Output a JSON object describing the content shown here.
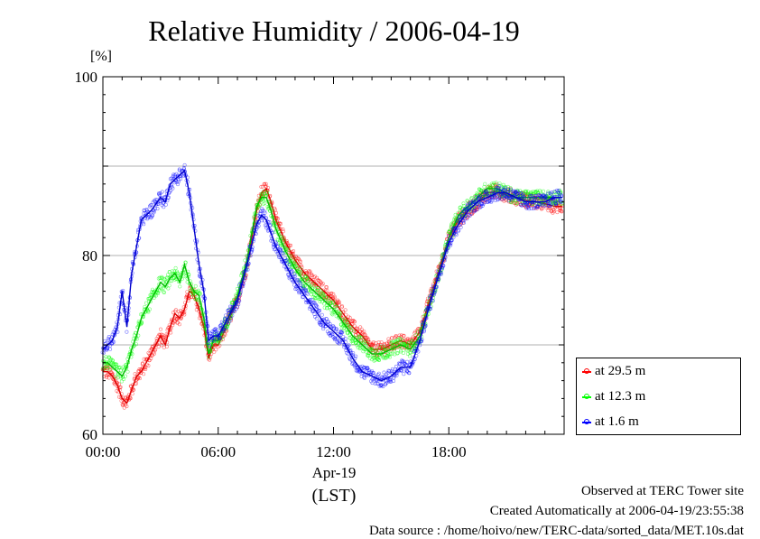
{
  "chart_data": {
    "type": "line",
    "title": "Relative Humidity / 2006-04-19",
    "ylabel": "[%]",
    "ylim": [
      60,
      100
    ],
    "xlim": [
      0,
      24
    ],
    "yticks": [
      "60",
      "80",
      "100"
    ],
    "xticks": [
      {
        "at": 0,
        "label": "00:00"
      },
      {
        "at": 6,
        "label": "06:00"
      },
      {
        "at": 12,
        "label": "12:00"
      },
      {
        "at": 18,
        "label": "18:00"
      }
    ],
    "gridlines_y": [
      70,
      80,
      90
    ],
    "grid": true,
    "date_label": "Apr-19",
    "tz_label": "(LST)",
    "legend_position": "bottom-right, outside plot",
    "series": [
      {
        "name": "at 29.5 m",
        "color": "#ff0000",
        "x": [
          0,
          0.25,
          0.5,
          0.75,
          1.0,
          1.25,
          1.5,
          1.75,
          2.0,
          2.5,
          3.0,
          3.25,
          3.5,
          3.75,
          4.0,
          4.25,
          4.5,
          4.75,
          5.0,
          5.25,
          5.5,
          5.75,
          6.0,
          6.5,
          7.0,
          7.5,
          8.0,
          8.25,
          8.5,
          8.75,
          9.0,
          9.5,
          10.0,
          10.5,
          11.0,
          11.5,
          12.0,
          12.5,
          13.0,
          13.5,
          14.0,
          14.5,
          15.0,
          15.5,
          16.0,
          16.5,
          17.0,
          17.5,
          18.0,
          18.5,
          19.0,
          19.5,
          20.0,
          20.5,
          21.0,
          21.5,
          22.0,
          22.5,
          23.0,
          23.5,
          23.9
        ],
        "values": [
          67,
          67,
          66.5,
          65.5,
          64,
          63.5,
          65,
          66.5,
          67,
          69,
          71,
          70,
          72,
          73.5,
          73,
          74,
          76,
          75.5,
          74,
          72,
          68.5,
          70,
          70,
          72.5,
          75,
          79,
          85,
          87,
          87.5,
          86,
          84,
          81.5,
          79.5,
          78,
          77,
          76,
          75,
          73.5,
          72,
          71,
          69.5,
          69.5,
          70,
          70.5,
          70,
          71.5,
          75,
          78.5,
          82,
          84,
          85,
          86,
          87,
          87.2,
          86.8,
          86.5,
          86.2,
          86,
          85.8,
          85.5,
          85.5
        ]
      },
      {
        "name": "at 12.3 m",
        "color": "#00ff00",
        "x": [
          0,
          0.25,
          0.5,
          0.75,
          1.0,
          1.25,
          1.5,
          1.75,
          2.0,
          2.5,
          3.0,
          3.25,
          3.5,
          3.75,
          4.0,
          4.25,
          4.5,
          4.75,
          5.0,
          5.25,
          5.5,
          5.75,
          6.0,
          6.5,
          7.0,
          7.5,
          8.0,
          8.25,
          8.5,
          8.75,
          9.0,
          9.5,
          10.0,
          10.5,
          11.0,
          11.5,
          12.0,
          12.5,
          13.0,
          13.5,
          14.0,
          14.5,
          15.0,
          15.5,
          16.0,
          16.5,
          17.0,
          17.5,
          18.0,
          18.5,
          19.0,
          19.5,
          20.0,
          20.5,
          21.0,
          21.5,
          22.0,
          22.5,
          23.0,
          23.5,
          23.9
        ],
        "values": [
          68,
          68,
          67.5,
          67,
          66.5,
          67.5,
          69.5,
          71,
          73,
          75,
          77,
          76.5,
          77.5,
          78,
          77,
          79,
          77,
          76,
          75.5,
          73,
          69,
          70.5,
          70.5,
          73,
          75.5,
          79.5,
          85.5,
          86.5,
          86.5,
          85,
          83,
          80.5,
          78.5,
          77,
          76,
          75,
          74,
          72.5,
          71,
          70,
          69,
          69,
          69.5,
          70,
          69.5,
          71,
          74.5,
          78,
          82,
          84.5,
          85.5,
          86.5,
          87.5,
          87.5,
          87,
          86.5,
          86.5,
          86.5,
          86.5,
          86.5,
          86.5
        ]
      },
      {
        "name": "at 1.6 m",
        "color": "#0000ff",
        "x": [
          0,
          0.25,
          0.5,
          0.75,
          1.0,
          1.25,
          1.5,
          1.75,
          2.0,
          2.5,
          3.0,
          3.25,
          3.5,
          3.75,
          4.0,
          4.25,
          4.5,
          4.75,
          5.0,
          5.25,
          5.5,
          5.75,
          6.0,
          6.5,
          7.0,
          7.5,
          8.0,
          8.25,
          8.5,
          8.75,
          9.0,
          9.5,
          10.0,
          10.5,
          11.0,
          11.5,
          12.0,
          12.5,
          13.0,
          13.5,
          14.0,
          14.5,
          15.0,
          15.5,
          16.0,
          16.5,
          17.0,
          17.5,
          18.0,
          18.5,
          19.0,
          19.5,
          20.0,
          20.5,
          21.0,
          21.5,
          22.0,
          22.5,
          23.0,
          23.5,
          23.9
        ],
        "values": [
          69.5,
          70,
          70.5,
          72,
          76,
          72,
          78,
          81,
          84,
          85,
          86.5,
          86,
          88,
          88.5,
          89,
          89.5,
          87,
          83,
          79,
          76,
          70.5,
          71,
          71,
          73,
          75,
          79,
          83.5,
          84.5,
          84,
          82.5,
          81,
          79,
          77,
          75.5,
          74,
          72.5,
          71.5,
          70.5,
          68.5,
          67,
          66.5,
          66,
          66.5,
          67.5,
          67.5,
          70.5,
          74.5,
          78,
          81.5,
          83.5,
          85,
          86,
          86.5,
          87,
          87,
          86.5,
          86,
          86,
          86,
          86.5,
          86.5
        ]
      }
    ]
  },
  "footer": {
    "line1": "Observed at TERC Tower site",
    "line2": "Created Automatically at 2006-04-19/23:55:38",
    "line3": "Data source : /home/hoivo/new/TERC-data/sorted_data/MET.10s.dat"
  }
}
